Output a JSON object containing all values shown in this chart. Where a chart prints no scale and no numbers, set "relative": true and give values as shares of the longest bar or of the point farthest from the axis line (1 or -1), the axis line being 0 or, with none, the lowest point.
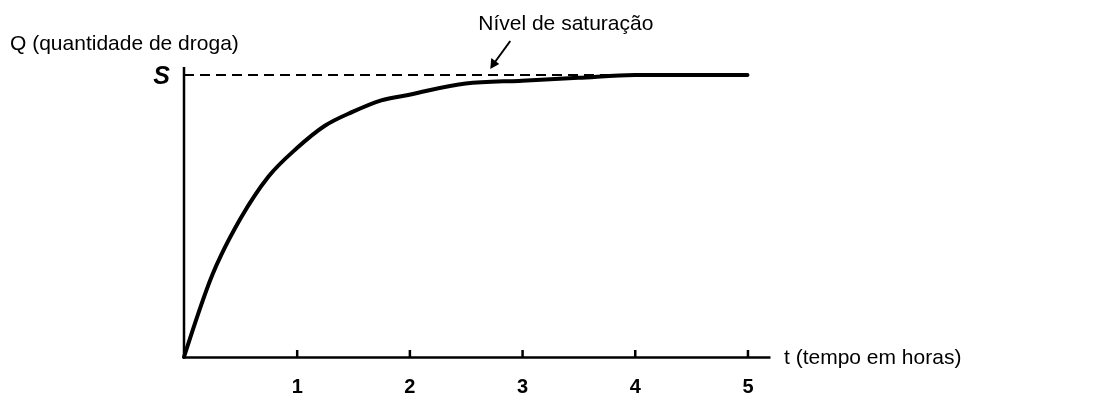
{
  "chart_data": {
    "type": "line",
    "relative": true,
    "xlabel": "t (tempo em horas)",
    "ylabel": "Q (quantidade de droga)",
    "x": [
      0,
      0.25,
      0.5,
      0.75,
      1,
      1.25,
      1.5,
      1.75,
      2,
      2.5,
      3,
      3.5,
      4,
      4.5,
      5
    ],
    "series": [
      {
        "color": "#000000",
        "values": [
          0,
          0.29,
          0.49,
          0.64,
          0.74,
          0.82,
          0.87,
          0.91,
          0.93,
          0.97,
          0.98,
          0.99,
          1,
          1,
          1
        ]
      }
    ],
    "xlim": [
      0,
      5.2
    ],
    "xticks": [
      1,
      2,
      3,
      4,
      5
    ],
    "ref_lines": [
      {
        "axis": "y",
        "value": 1,
        "label": "S",
        "line_style": "dashed",
        "color": "#000000"
      }
    ],
    "annotations": [
      {
        "text": "Nível de saturação",
        "x": 2.7,
        "y": 1
      }
    ],
    "marker": "none",
    "line_style": "solid",
    "grid": false
  }
}
